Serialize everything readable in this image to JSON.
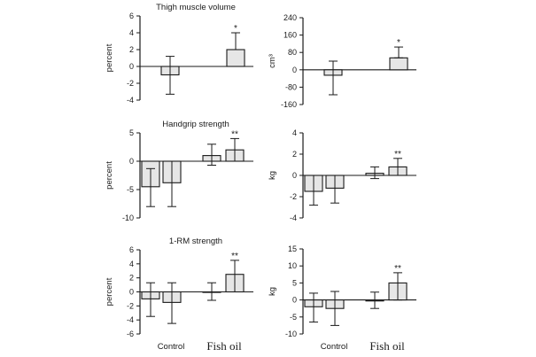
{
  "chart_data": [
    {
      "type": "bar",
      "title": "Thigh muscle volume",
      "ylabel": "percent",
      "ylim": [
        -4,
        6
      ],
      "yticks": [
        "6",
        "4",
        "2",
        "0",
        "-2",
        "-4"
      ],
      "ytick_values": [
        6,
        4,
        2,
        0,
        -2,
        -4
      ],
      "bars": [
        {
          "group": "Control",
          "value": -1.0,
          "err_low": -3.3,
          "err_high": 1.2,
          "label": ""
        },
        {
          "group": "Fish oil",
          "value": 2.0,
          "err_low": 2.0,
          "err_high": 4.0,
          "label": "*"
        }
      ]
    },
    {
      "type": "bar",
      "title": "",
      "ylabel": "cm³",
      "ylim": [
        -160,
        240
      ],
      "yticks": [
        "240",
        "160",
        "80",
        "0",
        "-80",
        "-160"
      ],
      "ytick_values": [
        240,
        160,
        80,
        0,
        -80,
        -160
      ],
      "bars": [
        {
          "group": "Control",
          "value": -25,
          "err_low": -115,
          "err_high": 40,
          "label": ""
        },
        {
          "group": "Fish oil",
          "value": 55,
          "err_low": 55,
          "err_high": 105,
          "label": "*"
        }
      ]
    },
    {
      "type": "bar",
      "title": "Handgrip strength",
      "ylabel": "percent",
      "ylim": [
        -10,
        5
      ],
      "yticks": [
        "5",
        "0",
        "-5",
        "-10"
      ],
      "ytick_values": [
        5,
        0,
        -5,
        -10
      ],
      "bars": [
        {
          "group": "Control",
          "value": -4.5,
          "err_low": -8.0,
          "err_high": -1.3,
          "label": ""
        },
        {
          "group": "Control",
          "value": -3.8,
          "err_low": -8.0,
          "err_high": 0,
          "label": ""
        },
        {
          "group": "Fish oil",
          "value": 1.0,
          "err_low": -0.7,
          "err_high": 3.0,
          "label": ""
        },
        {
          "group": "Fish oil",
          "value": 2.0,
          "err_low": 0,
          "err_high": 4.0,
          "label": "**"
        }
      ]
    },
    {
      "type": "bar",
      "title": "",
      "ylabel": "kg",
      "ylim": [
        -4,
        4
      ],
      "yticks": [
        "4",
        "2",
        "0",
        "-2",
        "-4"
      ],
      "ytick_values": [
        4,
        2,
        0,
        -2,
        -4
      ],
      "bars": [
        {
          "group": "Control",
          "value": -1.5,
          "err_low": -2.8,
          "err_high": 0,
          "label": ""
        },
        {
          "group": "Control",
          "value": -1.2,
          "err_low": -2.6,
          "err_high": 0,
          "label": ""
        },
        {
          "group": "Fish oil",
          "value": 0.2,
          "err_low": -0.3,
          "err_high": 0.8,
          "label": ""
        },
        {
          "group": "Fish oil",
          "value": 0.8,
          "err_low": 0,
          "err_high": 1.6,
          "label": "**"
        }
      ]
    },
    {
      "type": "bar",
      "title": "1-RM strength",
      "ylabel": "percent",
      "ylim": [
        -6,
        6
      ],
      "yticks": [
        "6",
        "4",
        "2",
        "0",
        "-2",
        "-4",
        "-6"
      ],
      "ytick_values": [
        6,
        4,
        2,
        0,
        -2,
        -4,
        -6
      ],
      "bars": [
        {
          "group": "Control",
          "value": -1.0,
          "err_low": -3.5,
          "err_high": 1.3,
          "label": ""
        },
        {
          "group": "Control",
          "value": -1.5,
          "err_low": -4.5,
          "err_high": 1.3,
          "label": ""
        },
        {
          "group": "Fish oil",
          "value": 0.0,
          "err_low": -1.2,
          "err_high": 1.3,
          "label": ""
        },
        {
          "group": "Fish oil",
          "value": 2.5,
          "err_low": 0,
          "err_high": 4.5,
          "label": "**"
        }
      ]
    },
    {
      "type": "bar",
      "title": "",
      "ylabel": "kg",
      "ylim": [
        -10,
        15
      ],
      "yticks": [
        "15",
        "10",
        "5",
        "0",
        "-5",
        "-10"
      ],
      "ytick_values": [
        15,
        10,
        5,
        0,
        -5,
        -10
      ],
      "bars": [
        {
          "group": "Control",
          "value": -2.0,
          "err_low": -6.5,
          "err_high": 2.0,
          "label": ""
        },
        {
          "group": "Control",
          "value": -2.5,
          "err_low": -7.5,
          "err_high": 2.5,
          "label": ""
        },
        {
          "group": "Fish oil",
          "value": -0.3,
          "err_low": -2.5,
          "err_high": 2.3,
          "label": ""
        },
        {
          "group": "Fish oil",
          "value": 5.0,
          "err_low": 0,
          "err_high": 8.0,
          "label": "**"
        }
      ]
    }
  ],
  "x_categories": [
    "Control",
    "Fish oil"
  ],
  "colors": {
    "bar_fill": "#e6e6e6",
    "stroke": "#1a1a1a"
  }
}
